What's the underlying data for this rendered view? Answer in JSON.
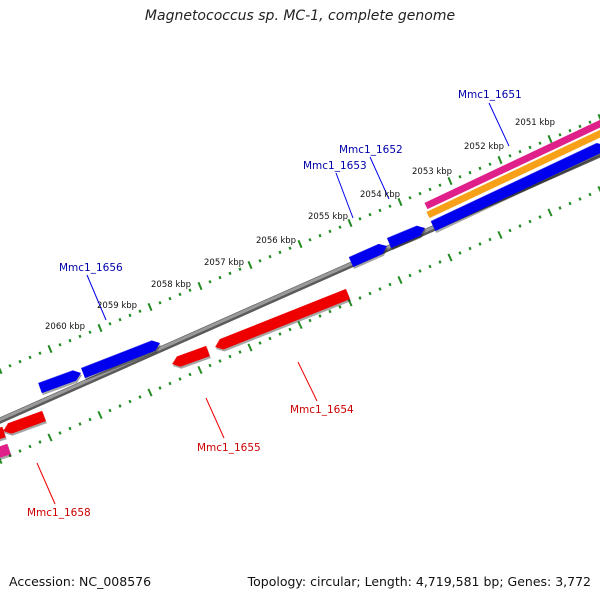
{
  "title": "Magnetococcus sp. MC-1, complete genome",
  "footer": {
    "accession": "Accession: NC_008576",
    "stats": "Topology: circular; Length: 4,719,581 bp; Genes: 3,772"
  },
  "colors": {
    "forward_gene": "#0000ee",
    "reverse_gene": "#ee0000",
    "backbone": "#888888",
    "tick": "#228b22",
    "forward_label": "#0000aa",
    "reverse_label": "#cc0000",
    "magenta_band": "#e0208a",
    "orange_band": "#f7a018"
  },
  "kbp_labels": [
    "2051 kbp",
    "2052 kbp",
    "2053 kbp",
    "2054 kbp",
    "2055 kbp",
    "2056 kbp",
    "2057 kbp",
    "2058 kbp",
    "2059 kbp",
    "2060 kbp"
  ],
  "genes_forward": [
    {
      "name": "Mmc1_1651"
    },
    {
      "name": "Mmc1_1652"
    },
    {
      "name": "Mmc1_1653"
    },
    {
      "name": "Mmc1_1656"
    }
  ],
  "genes_reverse": [
    {
      "name": "Mmc1_1654"
    },
    {
      "name": "Mmc1_1655"
    },
    {
      "name": "Mmc1_1658"
    }
  ]
}
